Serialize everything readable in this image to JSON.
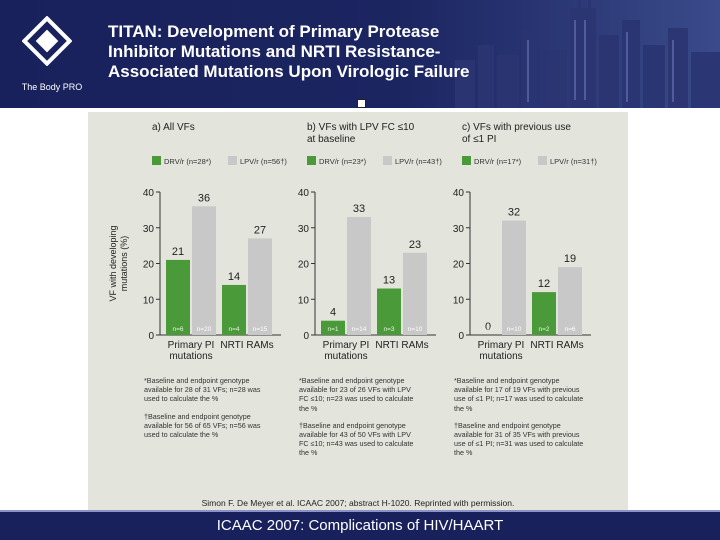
{
  "header": {
    "logo_text": "The Body PRO",
    "title_lines": [
      "TITAN: Development of Primary Protease",
      "Inhibitor Mutations and NRTI Resistance-",
      "Associated Mutations Upon Virologic Failure"
    ]
  },
  "footer": {
    "citation": "Simon F. De Meyer et al. ICAAC 2007; abstract H-1020. Reprinted with permission.",
    "banner": "ICAAC 2007: Complications of HIV/HAART"
  },
  "colors": {
    "header_bg": "#19215c",
    "drv": "#4a9a3a",
    "lpv": "#c8c8c8",
    "panel_bg": "#e3e4dc"
  },
  "chart_data": [
    {
      "type": "bar",
      "title_lines": [
        "a) All VFs",
        ""
      ],
      "legend": [
        {
          "name": "DRV/r (n=28*)",
          "color": "#4a9a3a"
        },
        {
          "name": "LPV/r (n=56†)",
          "color": "#c8c8c8"
        }
      ],
      "ylabel_lines": [
        "VF with developing",
        "mutations (%)"
      ],
      "ylim": [
        0,
        40
      ],
      "yticks": [
        0,
        10,
        20,
        30,
        40
      ],
      "categories": [
        [
          "Primary PI",
          "mutations"
        ],
        [
          "NRTI RAMs",
          ""
        ]
      ],
      "series": [
        {
          "name": "DRV/r",
          "values": [
            21,
            14
          ],
          "n_labels": [
            "n=6",
            "n=4"
          ]
        },
        {
          "name": "LPV/r",
          "values": [
            36,
            27
          ],
          "n_labels": [
            "n=20",
            "n=15"
          ]
        }
      ],
      "footnotes": [
        [
          "*Baseline and endpoint genotype",
          "available for 28 of 31 VFs; n=28 was",
          "used to calculate the %"
        ],
        [
          "†Baseline and endpoint genotype",
          "available for 56 of 65 VFs; n=56 was",
          "used to calculate the %"
        ]
      ]
    },
    {
      "type": "bar",
      "title_lines": [
        "b) VFs with LPV FC ≤10",
        "at baseline"
      ],
      "legend": [
        {
          "name": "DRV/r (n=23*)",
          "color": "#4a9a3a"
        },
        {
          "name": "LPV/r (n=43†)",
          "color": "#c8c8c8"
        }
      ],
      "ylim": [
        0,
        40
      ],
      "yticks": [
        0,
        10,
        20,
        30,
        40
      ],
      "categories": [
        [
          "Primary PI",
          "mutations"
        ],
        [
          "NRTI RAMs",
          ""
        ]
      ],
      "series": [
        {
          "name": "DRV/r",
          "values": [
            4,
            13
          ],
          "n_labels": [
            "n=1",
            "n=3"
          ]
        },
        {
          "name": "LPV/r",
          "values": [
            33,
            23
          ],
          "n_labels": [
            "n=14",
            "n=10"
          ]
        }
      ],
      "footnotes": [
        [
          "*Baseline and endpoint genotype",
          "available for 23 of 26 VFs with LPV",
          "FC ≤10; n=23 was used to calculate",
          "the %"
        ],
        [
          "†Baseline and endpoint genotype",
          "available for 43 of 50 VFs with LPV",
          "FC ≤10; n=43 was used to calculate",
          "the %"
        ]
      ]
    },
    {
      "type": "bar",
      "title_lines": [
        "c) VFs with previous use",
        "of ≤1 PI"
      ],
      "legend": [
        {
          "name": "DRV/r (n=17*)",
          "color": "#4a9a3a"
        },
        {
          "name": "LPV/r (n=31†)",
          "color": "#c8c8c8"
        }
      ],
      "ylim": [
        0,
        40
      ],
      "yticks": [
        0,
        10,
        20,
        30,
        40
      ],
      "categories": [
        [
          "Primary PI",
          "mutations"
        ],
        [
          "NRTI RAMs",
          ""
        ]
      ],
      "series": [
        {
          "name": "DRV/r",
          "values": [
            0,
            12
          ],
          "n_labels": [
            "n=0",
            "n=2"
          ]
        },
        {
          "name": "LPV/r",
          "values": [
            32,
            19
          ],
          "n_labels": [
            "n=10",
            "n=6"
          ]
        }
      ],
      "footnotes": [
        [
          "*Baseline and endpoint genotype",
          "available for 17 of 19 VFs with previous",
          "use of ≤1 PI; n=17 was used to calculate",
          "the %"
        ],
        [
          "†Baseline and endpoint genotype",
          "available for 31 of 35 VFs with previous",
          "use of ≤1 PI; n=31 was used to calculate",
          "the %"
        ]
      ]
    }
  ]
}
